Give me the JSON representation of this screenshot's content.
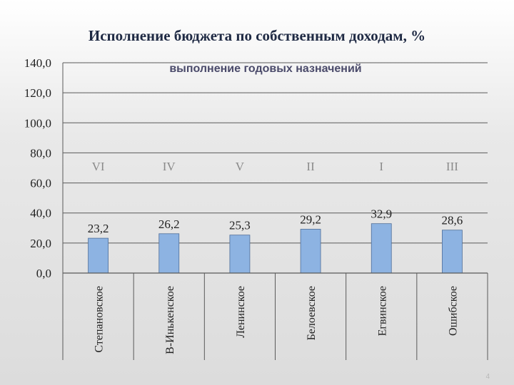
{
  "slide": {
    "title": "Исполнение бюджета по собственным доходам, %",
    "page_number": "4"
  },
  "chart_data": {
    "type": "bar",
    "title": "выполнение годовых назначений",
    "xlabel": "",
    "ylabel": "",
    "ylim": [
      0,
      140
    ],
    "y_ticks": [
      "0,0",
      "20,0",
      "40,0",
      "60,0",
      "80,0",
      "100,0",
      "120,0",
      "140,0"
    ],
    "grid": true,
    "categories": [
      "Степановское",
      "В-Инькенское",
      "Ленинское",
      "Белоевское",
      "Егвинское",
      "Ошибское"
    ],
    "values": [
      23.2,
      26.2,
      25.3,
      29.2,
      32.9,
      28.6
    ],
    "value_labels": [
      "23,2",
      "26,2",
      "25,3",
      "29,2",
      "32,9",
      "28,6"
    ],
    "ranks": [
      "VI",
      "IV",
      "V",
      "II",
      "I",
      "III"
    ],
    "colors": {
      "bar": "#8db3e2",
      "bar_stroke": "#4f6f9a",
      "grid": "#5a5a5a",
      "rank": "#8a8a8a",
      "text": "#222222"
    }
  }
}
